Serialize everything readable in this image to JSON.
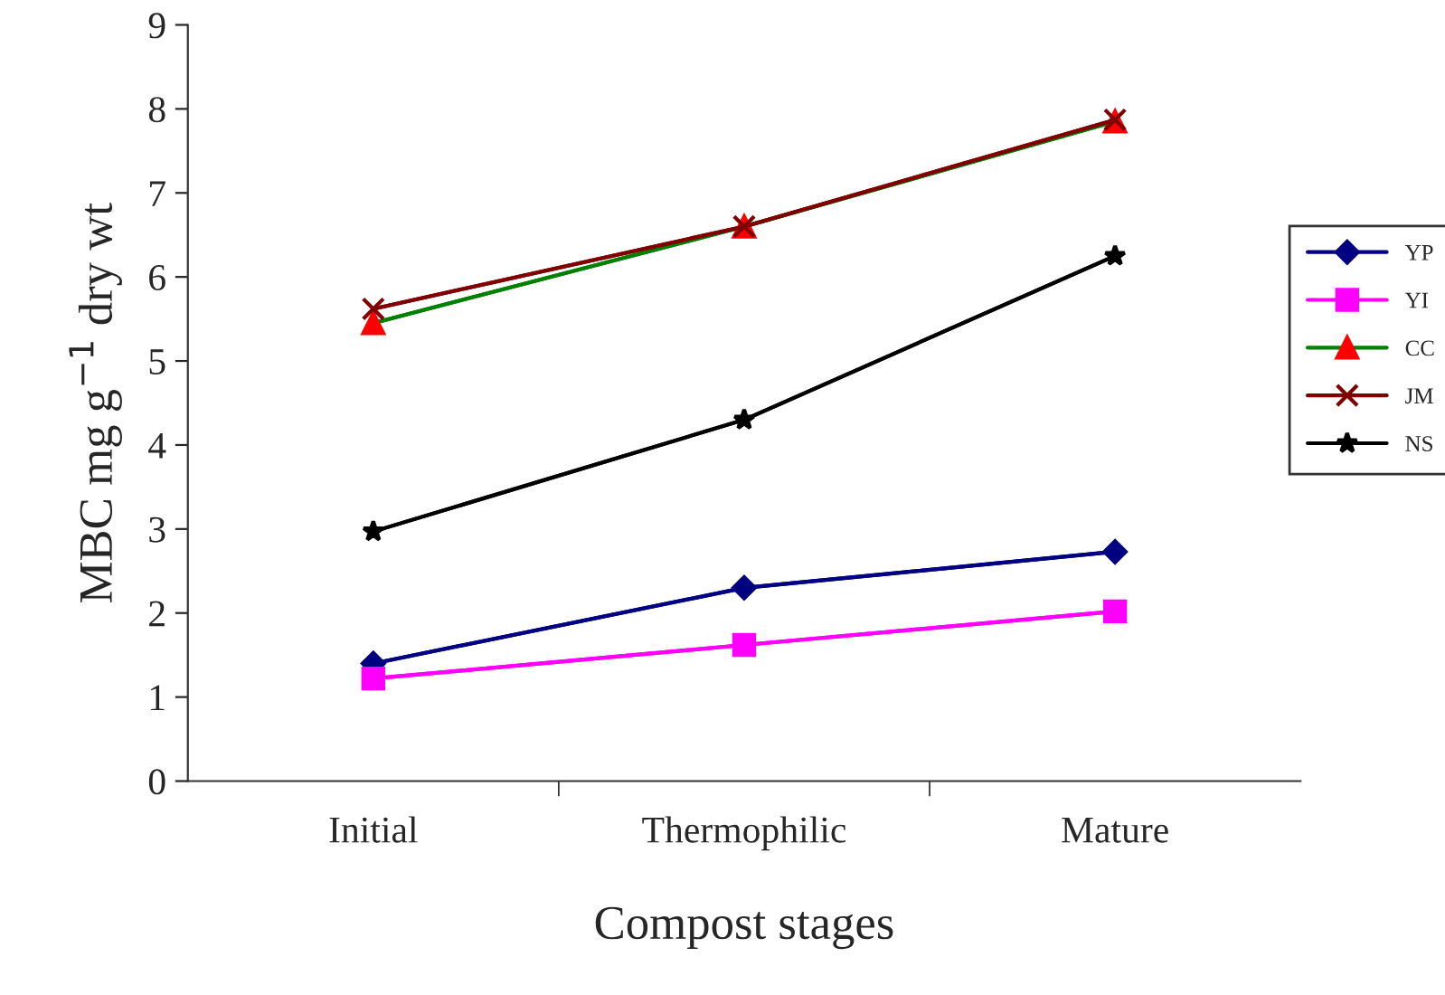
{
  "chart_data": {
    "type": "line",
    "xlabel": "Compost stages",
    "ylabel": "MBC mg g$^{−1}$ dry wt",
    "categories": [
      "Initial",
      "Thermophilic",
      "Mature"
    ],
    "series": [
      {
        "name": "YP",
        "color": "#000080",
        "marker": "diamond",
        "values": [
          1.4,
          2.3,
          2.73
        ]
      },
      {
        "name": "YI",
        "color": "#ff00ff",
        "marker": "square",
        "values": [
          1.22,
          1.62,
          2.02
        ]
      },
      {
        "name": "CC",
        "color": "#008000",
        "marker": "triangle",
        "values": [
          5.45,
          6.6,
          7.85
        ]
      },
      {
        "name": "JM",
        "color": "#800000",
        "marker": "cross",
        "values": [
          5.62,
          6.6,
          7.87
        ]
      },
      {
        "name": "NS",
        "color": "#000000",
        "marker": "star",
        "values": [
          2.97,
          4.3,
          6.25
        ]
      }
    ],
    "ylim": [
      0,
      9
    ],
    "yticks": [
      0,
      1,
      2,
      3,
      4,
      5,
      6,
      7,
      8,
      9
    ],
    "grid": false,
    "legend": "right"
  }
}
